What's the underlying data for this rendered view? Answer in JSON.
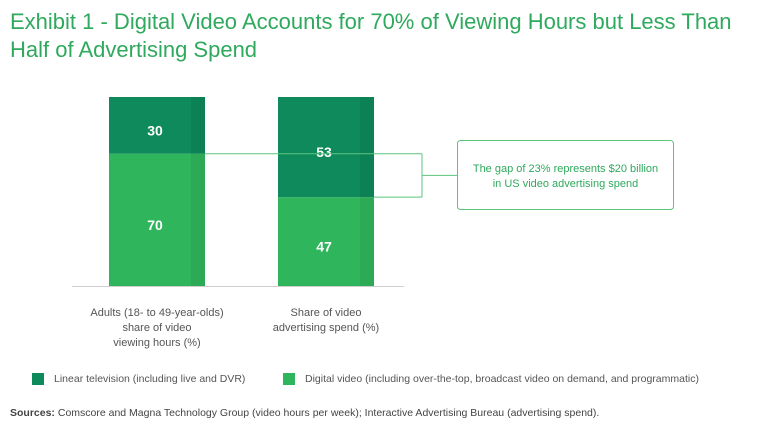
{
  "title": "Exhibit 1 - Digital Video Accounts for 70% of Viewing Hours but Less Than Half of Advertising Spend",
  "colors": {
    "linear": "#0e8a5c",
    "digital": "#2fb55c",
    "title": "#2fa95d",
    "annotation_border": "#5cc47c"
  },
  "chart_data": {
    "type": "bar",
    "stacked": true,
    "categories": [
      "Adults (18- to 49-year-olds) share of video viewing hours (%)",
      "Share of video advertising spend (%)"
    ],
    "category_lines": [
      [
        "Adults (18- to 49-year-olds)",
        "share of video",
        "viewing hours (%)"
      ],
      [
        "Share of video",
        "advertising spend (%)"
      ]
    ],
    "series": [
      {
        "name": "Digital video (including over-the-top, broadcast video on demand, and programmatic)",
        "values": [
          70,
          47
        ]
      },
      {
        "name": "Linear television (including live and DVR)",
        "values": [
          30,
          53
        ]
      }
    ],
    "ylim": [
      0,
      100
    ],
    "annotation": {
      "lines": [
        "The gap of 23% represents $20 billion",
        "in US video advertising spend"
      ]
    },
    "legend": [
      {
        "label": "Linear television (including live and DVR)",
        "color": "#0e8a5c"
      },
      {
        "label": "Digital video (including over-the-top, broadcast video on demand, and programmatic)",
        "color": "#2fb55c"
      }
    ]
  },
  "source": {
    "label": "Sources:",
    "text": " Comscore and Magna Technology Group (video hours per week); Interactive Advertising Bureau (advertising spend)."
  }
}
